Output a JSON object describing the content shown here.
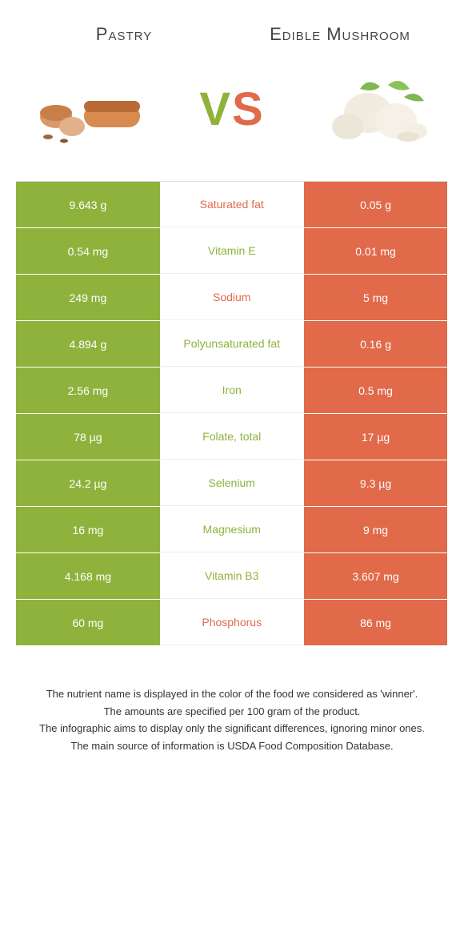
{
  "colors": {
    "green": "#8fb23d",
    "orange": "#e06a4a",
    "background": "#ffffff",
    "title_text": "#444444",
    "footer_text": "#333333"
  },
  "foods": {
    "left": {
      "title": "Pastry",
      "color_key": "green"
    },
    "right": {
      "title": "Edible Mushroom",
      "color_key": "orange"
    }
  },
  "vs_label": {
    "v": "V",
    "s": "S"
  },
  "rows": [
    {
      "nutrient": "Saturated fat",
      "left": "9.643 g",
      "right": "0.05 g",
      "winner": "orange"
    },
    {
      "nutrient": "Vitamin E",
      "left": "0.54 mg",
      "right": "0.01 mg",
      "winner": "green"
    },
    {
      "nutrient": "Sodium",
      "left": "249 mg",
      "right": "5 mg",
      "winner": "orange"
    },
    {
      "nutrient": "Polyunsaturated fat",
      "left": "4.894 g",
      "right": "0.16 g",
      "winner": "green"
    },
    {
      "nutrient": "Iron",
      "left": "2.56 mg",
      "right": "0.5 mg",
      "winner": "green"
    },
    {
      "nutrient": "Folate, total",
      "left": "78 µg",
      "right": "17 µg",
      "winner": "green"
    },
    {
      "nutrient": "Selenium",
      "left": "24.2 µg",
      "right": "9.3 µg",
      "winner": "green"
    },
    {
      "nutrient": "Magnesium",
      "left": "16 mg",
      "right": "9 mg",
      "winner": "green"
    },
    {
      "nutrient": "Vitamin B3",
      "left": "4.168 mg",
      "right": "3.607 mg",
      "winner": "green"
    },
    {
      "nutrient": "Phosphorus",
      "left": "60 mg",
      "right": "86 mg",
      "winner": "orange"
    }
  ],
  "footer": [
    "The nutrient name is displayed in the color of the food we considered as 'winner'.",
    "The amounts are specified per 100 gram of the product.",
    "The infographic aims to display only the significant differences, ignoring minor ones.",
    "The main source of information is USDA Food Composition Database."
  ]
}
